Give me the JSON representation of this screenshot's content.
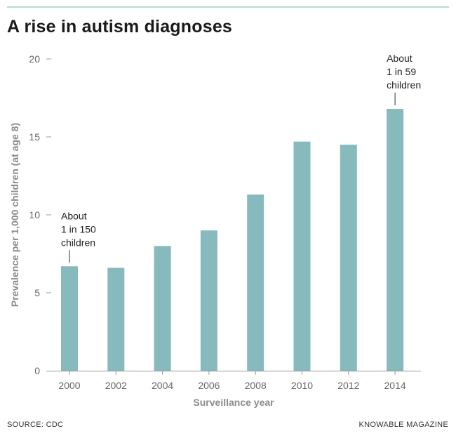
{
  "title": "A rise in autism diagnoses",
  "footer": {
    "source": "SOURCE: CDC",
    "publisher": "KNOWABLE MAGAZINE"
  },
  "colors": {
    "bar": "#86babd",
    "rule": "#b9dcd7"
  },
  "chart_data": {
    "type": "bar",
    "title": "A rise in autism diagnoses",
    "xlabel": "Surveillance year",
    "ylabel": "Prevalence per 1,000 children (at age 8)",
    "categories": [
      "2000",
      "2002",
      "2004",
      "2006",
      "2008",
      "2010",
      "2012",
      "2014"
    ],
    "values": [
      6.7,
      6.6,
      8.0,
      9.0,
      11.3,
      14.7,
      14.5,
      16.8
    ],
    "ylim": [
      0,
      20
    ],
    "yticks": [
      0,
      5,
      10,
      15,
      20
    ],
    "grid": false,
    "annotations": [
      {
        "category": "2000",
        "lines": [
          "About",
          "1 in 150",
          "children"
        ]
      },
      {
        "category": "2014",
        "lines": [
          "About",
          "1 in 59",
          "children"
        ]
      }
    ]
  }
}
